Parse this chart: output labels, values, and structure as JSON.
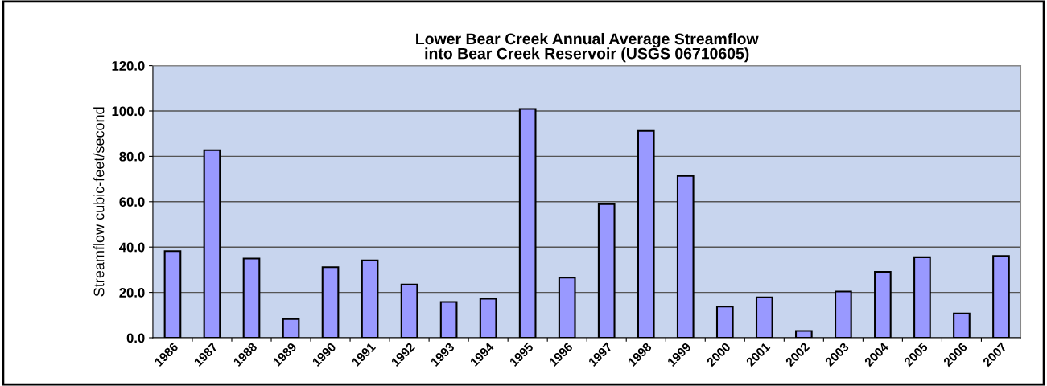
{
  "chart_data": {
    "type": "bar",
    "title": "Lower Bear Creek Annual Average Streamflow\ninto Bear Creek Reservoir (USGS 06710605)",
    "ylabel": "Streamflow cubic-feet/second",
    "categories": [
      "1986",
      "1987",
      "1988",
      "1989",
      "1990",
      "1991",
      "1992",
      "1993",
      "1994",
      "1995",
      "1996",
      "1997",
      "1998",
      "1999",
      "2000",
      "2001",
      "2002",
      "2003",
      "2004",
      "2005",
      "2006",
      "2007"
    ],
    "values": [
      38.2,
      82.7,
      34.9,
      8.3,
      31.1,
      34.1,
      23.5,
      15.8,
      17.2,
      100.9,
      26.5,
      59.0,
      91.2,
      71.4,
      13.8,
      17.8,
      3.0,
      20.4,
      29.1,
      35.5,
      10.7,
      36.1
    ],
    "color": "#9999ff",
    "ylim": [
      0,
      120
    ],
    "yticks": [
      {
        "value": 0,
        "label": "0.0"
      },
      {
        "value": 20,
        "label": "20.0"
      },
      {
        "value": 40,
        "label": "40.0"
      },
      {
        "value": 60,
        "label": "60.0"
      },
      {
        "value": 80,
        "label": "80.0"
      },
      {
        "value": 100,
        "label": "100.0"
      },
      {
        "value": 120,
        "label": "120.0"
      }
    ],
    "grid": "y",
    "legend": false
  }
}
